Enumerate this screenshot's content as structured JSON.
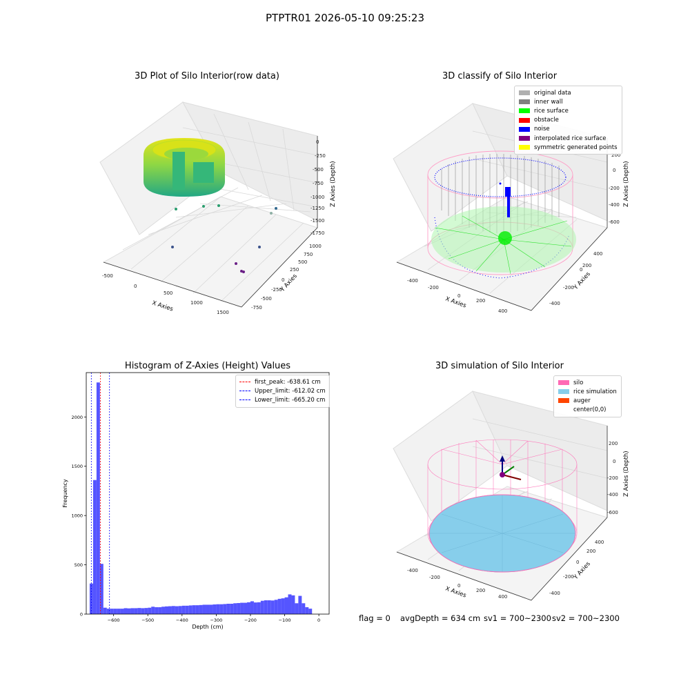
{
  "figure": {
    "title": "PTPTR01 2026-05-10 09:25:23"
  },
  "chart_data": [
    {
      "type": "scatter",
      "title": "3D Plot of Silo Interior(row data)",
      "xlabel": "X Axies",
      "ylabel": "Y Axies",
      "zlabel": "Z Axies (Depth)",
      "x_ticks": [
        "-500",
        "0",
        "500",
        "1000",
        "1500"
      ],
      "y_ticks": [
        "-750",
        "-500",
        "-250",
        "0",
        "250",
        "500",
        "750",
        "1000"
      ],
      "z_ticks": [
        "0",
        "-250",
        "-500",
        "-750",
        "-1000",
        "-1250",
        "-1500",
        "-1750"
      ],
      "xlim": [
        -500,
        1500
      ],
      "ylim": [
        -750,
        1000
      ],
      "zlim": [
        -1750,
        0
      ],
      "colormap": "viridis",
      "outlier_points": [
        {
          "x": 1450,
          "y": 750,
          "z": -1000
        },
        {
          "x": 1450,
          "y": 650,
          "z": -1150
        },
        {
          "x": 400,
          "y": -200,
          "z": -1000
        },
        {
          "x": 600,
          "y": 0,
          "z": -950
        },
        {
          "x": -100,
          "y": -600,
          "z": -1400
        },
        {
          "x": 1300,
          "y": 400,
          "z": -1500
        },
        {
          "x": 1000,
          "y": -600,
          "z": -1750
        }
      ]
    },
    {
      "type": "scatter",
      "title": "3D classify of Silo Interior",
      "xlabel": "X Axies",
      "ylabel": "Y Axies",
      "zlabel": "Z Axies (Depth)",
      "x_ticks": [
        "-400",
        "-200",
        "0",
        "200",
        "400"
      ],
      "y_ticks": [
        "-400",
        "-200",
        "0",
        "200",
        "400"
      ],
      "z_ticks": [
        "200",
        "0",
        "-200",
        "-400",
        "-600"
      ],
      "xlim": [
        -450,
        450
      ],
      "ylim": [
        -450,
        450
      ],
      "zlim": [
        -700,
        250
      ],
      "legend": [
        {
          "label": "original data",
          "color": "#b0b0b0"
        },
        {
          "label": "inner wall",
          "color": "#808080"
        },
        {
          "label": "rice surface",
          "color": "#00ff00"
        },
        {
          "label": "obstacle",
          "color": "#ff0000"
        },
        {
          "label": "noise",
          "color": "#0000ff"
        },
        {
          "label": "interpolated rice surface",
          "color": "#800080"
        },
        {
          "label": "symmetric generated points",
          "color": "#ffff00"
        }
      ]
    },
    {
      "type": "bar",
      "title": "Histogram of Z-Axies (Height) Values",
      "xlabel": "Depth (cm)",
      "ylabel": "Frequency",
      "xlim": [
        -680,
        30
      ],
      "ylim": [
        0,
        2450
      ],
      "x_ticks": [
        -600,
        -500,
        -400,
        -300,
        -200,
        -100,
        0
      ],
      "y_ticks": [
        0,
        500,
        1000,
        1500,
        2000
      ],
      "bar_color": "#4c4cff",
      "bin_width": 10,
      "bins": [
        {
          "x": -670,
          "value": 310
        },
        {
          "x": -660,
          "value": 1360
        },
        {
          "x": -650,
          "value": 2350
        },
        {
          "x": -640,
          "value": 510
        },
        {
          "x": -630,
          "value": 65
        },
        {
          "x": -620,
          "value": 55
        },
        {
          "x": -610,
          "value": 55
        },
        {
          "x": -600,
          "value": 55
        },
        {
          "x": -590,
          "value": 55
        },
        {
          "x": -580,
          "value": 55
        },
        {
          "x": -570,
          "value": 60
        },
        {
          "x": -560,
          "value": 58
        },
        {
          "x": -550,
          "value": 60
        },
        {
          "x": -540,
          "value": 60
        },
        {
          "x": -530,
          "value": 62
        },
        {
          "x": -520,
          "value": 60
        },
        {
          "x": -510,
          "value": 62
        },
        {
          "x": -500,
          "value": 65
        },
        {
          "x": -490,
          "value": 75
        },
        {
          "x": -480,
          "value": 70
        },
        {
          "x": -470,
          "value": 70
        },
        {
          "x": -460,
          "value": 75
        },
        {
          "x": -450,
          "value": 78
        },
        {
          "x": -440,
          "value": 80
        },
        {
          "x": -430,
          "value": 82
        },
        {
          "x": -420,
          "value": 80
        },
        {
          "x": -410,
          "value": 82
        },
        {
          "x": -400,
          "value": 85
        },
        {
          "x": -390,
          "value": 85
        },
        {
          "x": -380,
          "value": 88
        },
        {
          "x": -370,
          "value": 90
        },
        {
          "x": -360,
          "value": 90
        },
        {
          "x": -350,
          "value": 92
        },
        {
          "x": -340,
          "value": 95
        },
        {
          "x": -330,
          "value": 95
        },
        {
          "x": -320,
          "value": 95
        },
        {
          "x": -310,
          "value": 98
        },
        {
          "x": -300,
          "value": 100
        },
        {
          "x": -290,
          "value": 100
        },
        {
          "x": -280,
          "value": 102
        },
        {
          "x": -270,
          "value": 105
        },
        {
          "x": -260,
          "value": 105
        },
        {
          "x": -250,
          "value": 110
        },
        {
          "x": -240,
          "value": 112
        },
        {
          "x": -230,
          "value": 115
        },
        {
          "x": -220,
          "value": 115
        },
        {
          "x": -210,
          "value": 120
        },
        {
          "x": -200,
          "value": 130
        },
        {
          "x": -190,
          "value": 118
        },
        {
          "x": -180,
          "value": 120
        },
        {
          "x": -170,
          "value": 135
        },
        {
          "x": -160,
          "value": 140
        },
        {
          "x": -150,
          "value": 140
        },
        {
          "x": -140,
          "value": 138
        },
        {
          "x": -130,
          "value": 145
        },
        {
          "x": -120,
          "value": 155
        },
        {
          "x": -110,
          "value": 160
        },
        {
          "x": -100,
          "value": 170
        },
        {
          "x": -90,
          "value": 200
        },
        {
          "x": -80,
          "value": 190
        },
        {
          "x": -70,
          "value": 110
        },
        {
          "x": -60,
          "value": 185
        },
        {
          "x": -50,
          "value": 110
        },
        {
          "x": -40,
          "value": 70
        },
        {
          "x": -30,
          "value": 55
        }
      ],
      "vlines": [
        {
          "label": "first_peak: -638.61 cm",
          "x": -638.61,
          "color": "#ff0000"
        },
        {
          "label": "Upper_limit: -612.02 cm",
          "x": -612.02,
          "color": "#0000ff"
        },
        {
          "label": "Lower_limit: -665.20 cm",
          "x": -665.2,
          "color": "#0000ff"
        }
      ]
    },
    {
      "type": "scatter",
      "title": "3D simulation of Silo Interior",
      "xlabel": "X Axies",
      "ylabel": "Y Axies",
      "zlabel": "Z Axies (Depth)",
      "x_ticks": [
        "-400",
        "-200",
        "0",
        "200",
        "400"
      ],
      "y_ticks": [
        "-400",
        "-200",
        "0",
        "200",
        "400"
      ],
      "z_ticks": [
        "200",
        "0",
        "-200",
        "-400",
        "-600"
      ],
      "xlim": [
        -450,
        450
      ],
      "ylim": [
        -450,
        450
      ],
      "zlim": [
        -700,
        300
      ],
      "legend": [
        {
          "label": "silo",
          "color": "#ff69b4"
        },
        {
          "label": "rice simulation",
          "color": "#87ceeb"
        },
        {
          "label": "auger",
          "color": "#ff4500"
        },
        {
          "label": "center(0,0)",
          "color": "#ffffff"
        }
      ]
    }
  ],
  "footer": {
    "flag": "flag = 0",
    "avg_depth": "avgDepth = 634 cm",
    "sv1": "sv1 = 700~2300",
    "sv2": "sv2 = 700~2300"
  }
}
